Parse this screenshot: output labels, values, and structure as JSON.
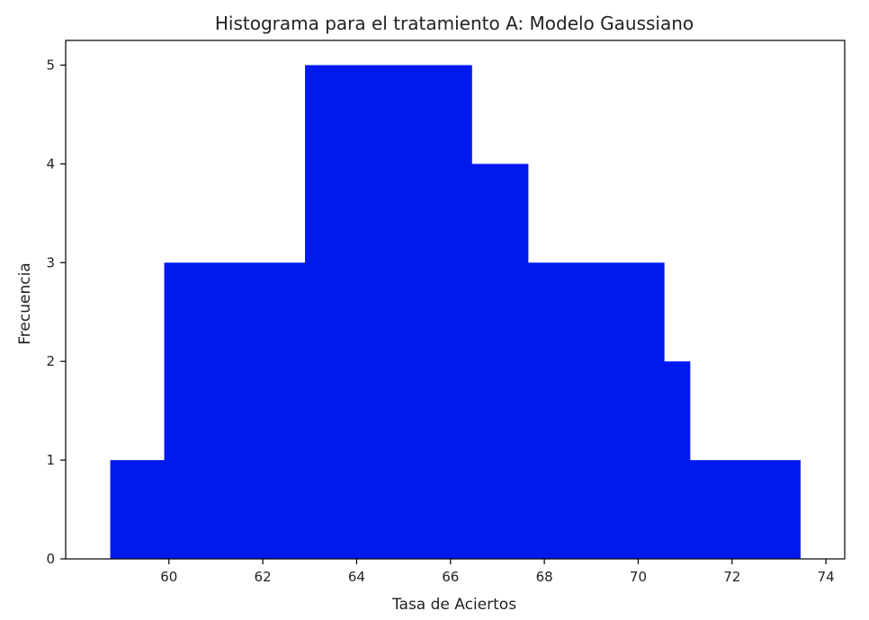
{
  "chart_data": {
    "type": "bar",
    "title": "Histograma para el tratamiento A: Modelo Gaussiano",
    "xlabel": "Tasa de Aciertos",
    "ylabel": "Frecuencia",
    "xlim": [
      57.8,
      74.4
    ],
    "ylim": [
      0,
      5.25
    ],
    "x_ticks": [
      60,
      62,
      64,
      66,
      68,
      70,
      72,
      74
    ],
    "y_ticks": [
      0,
      1,
      2,
      3,
      4,
      5
    ],
    "grid": false,
    "bar_color": "#0019ef",
    "bins": [
      {
        "start": 58.75,
        "end": 59.9,
        "count": 1
      },
      {
        "start": 59.9,
        "end": 62.9,
        "count": 3
      },
      {
        "start": 62.9,
        "end": 66.45,
        "count": 5
      },
      {
        "start": 66.45,
        "end": 67.65,
        "count": 4
      },
      {
        "start": 67.65,
        "end": 70.55,
        "count": 3
      },
      {
        "start": 70.55,
        "end": 71.1,
        "count": 2
      },
      {
        "start": 71.1,
        "end": 73.45,
        "count": 1
      }
    ]
  }
}
